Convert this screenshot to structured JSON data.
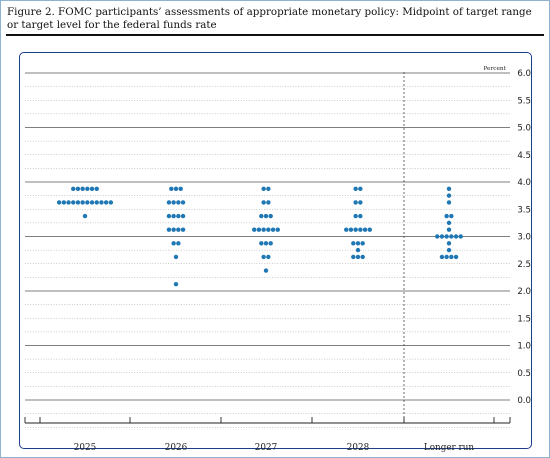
{
  "figure": {
    "title": "Figure 2.  FOMC participants’ assessments of appropriate monetary policy: Midpoint of target range or target level for the federal funds rate"
  },
  "chart_data": {
    "type": "scatter",
    "unit_label": "Percent",
    "ylim": [
      -0.5,
      6.0
    ],
    "y_ticks": [
      "6.0",
      "5.5",
      "5.0",
      "4.5",
      "4.0",
      "3.5",
      "3.0",
      "2.5",
      "2.0",
      "1.5",
      "1.0",
      "0.5",
      "0.0"
    ],
    "y_tick_values": [
      6.0,
      5.5,
      5.0,
      4.5,
      4.0,
      3.5,
      3.0,
      2.5,
      2.0,
      1.5,
      1.0,
      0.5,
      0.0
    ],
    "grid": "solid at whole numbers, dotted at every 0.25",
    "categories": [
      "2025",
      "2026",
      "2027",
      "2028",
      "Longer run"
    ],
    "dot_color": "#1f77b4",
    "series": [
      {
        "category": "2025",
        "dots": [
          {
            "y": 3.875,
            "count": 6
          },
          {
            "y": 3.625,
            "count": 12
          },
          {
            "y": 3.375,
            "count": 1
          }
        ]
      },
      {
        "category": "2026",
        "dots": [
          {
            "y": 3.875,
            "count": 3
          },
          {
            "y": 3.625,
            "count": 4
          },
          {
            "y": 3.375,
            "count": 4
          },
          {
            "y": 3.125,
            "count": 4
          },
          {
            "y": 2.875,
            "count": 2
          },
          {
            "y": 2.625,
            "count": 1
          },
          {
            "y": 2.125,
            "count": 1
          }
        ]
      },
      {
        "category": "2027",
        "dots": [
          {
            "y": 3.875,
            "count": 2
          },
          {
            "y": 3.625,
            "count": 2
          },
          {
            "y": 3.375,
            "count": 3
          },
          {
            "y": 3.125,
            "count": 6
          },
          {
            "y": 2.875,
            "count": 3
          },
          {
            "y": 2.625,
            "count": 2
          },
          {
            "y": 2.375,
            "count": 1
          }
        ]
      },
      {
        "category": "2028",
        "dots": [
          {
            "y": 3.875,
            "count": 2
          },
          {
            "y": 3.625,
            "count": 2
          },
          {
            "y": 3.375,
            "count": 2
          },
          {
            "y": 3.125,
            "count": 6
          },
          {
            "y": 2.875,
            "count": 3
          },
          {
            "y": 2.75,
            "count": 1
          },
          {
            "y": 2.625,
            "count": 3
          }
        ]
      },
      {
        "category": "Longer run",
        "dots": [
          {
            "y": 3.875,
            "count": 1
          },
          {
            "y": 3.75,
            "count": 1
          },
          {
            "y": 3.625,
            "count": 1
          },
          {
            "y": 3.375,
            "count": 2
          },
          {
            "y": 3.25,
            "count": 1
          },
          {
            "y": 3.125,
            "count": 1
          },
          {
            "y": 3.0,
            "count": 6
          },
          {
            "y": 2.875,
            "count": 1
          },
          {
            "y": 2.75,
            "count": 1
          },
          {
            "y": 2.625,
            "count": 4
          }
        ]
      }
    ]
  }
}
